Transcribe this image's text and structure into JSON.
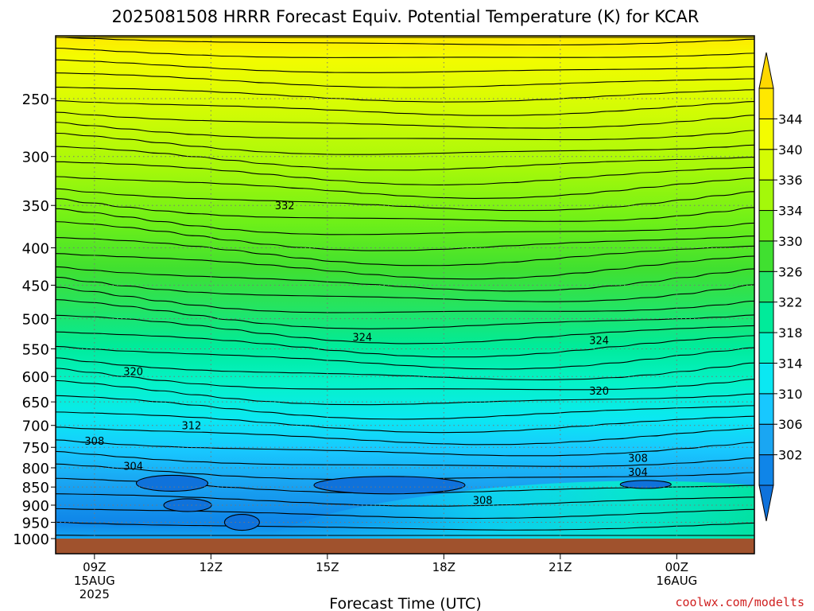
{
  "chart_data": {
    "type": "contour",
    "title": "2025081508 HRRR Forecast Equiv. Potential Temperature (K) for KCAR",
    "xlabel": "Forecast Time (UTC)",
    "ylabel": "",
    "credit": "coolwx.com/modelts",
    "x_ticks": [
      {
        "hour": 9,
        "lines": [
          "09Z",
          "15AUG",
          "2025"
        ]
      },
      {
        "hour": 12,
        "lines": [
          "12Z"
        ]
      },
      {
        "hour": 15,
        "lines": [
          "15Z"
        ]
      },
      {
        "hour": 18,
        "lines": [
          "18Z"
        ]
      },
      {
        "hour": 21,
        "lines": [
          "21Z"
        ]
      },
      {
        "hour": 24,
        "lines": [
          "00Z",
          "16AUG"
        ]
      }
    ],
    "xlim_hours": [
      8,
      26
    ],
    "y_axis": "pressure (hPa), log scale, inverted",
    "ylim": [
      1000,
      200
    ],
    "y_ticks": [
      250,
      300,
      350,
      400,
      450,
      500,
      550,
      600,
      650,
      700,
      750,
      800,
      850,
      900,
      950,
      1000
    ],
    "grid": true,
    "colorbar": {
      "labels": [
        302,
        306,
        310,
        314,
        318,
        322,
        326,
        330,
        334,
        336,
        340,
        344
      ],
      "levels": [
        298,
        302,
        306,
        310,
        314,
        318,
        322,
        326,
        330,
        334,
        336,
        340,
        344
      ],
      "colors": [
        "#0f85e8",
        "#1aa6f2",
        "#18c8ff",
        "#0be8f2",
        "#05f2c8",
        "#00eb9a",
        "#22e466",
        "#40e030",
        "#6ef018",
        "#a4f80a",
        "#d4fc04",
        "#f4fc00",
        "#ffe800"
      ]
    },
    "contour_labels": [
      {
        "value": 332,
        "hour": 13.9,
        "pressure": 350
      },
      {
        "value": 324,
        "hour": 15.9,
        "pressure": 530
      },
      {
        "value": 324,
        "hour": 22.0,
        "pressure": 535
      },
      {
        "value": 320,
        "hour": 10.0,
        "pressure": 590
      },
      {
        "value": 320,
        "hour": 22.0,
        "pressure": 627
      },
      {
        "value": 312,
        "hour": 11.5,
        "pressure": 700
      },
      {
        "value": 308,
        "hour": 9.0,
        "pressure": 735
      },
      {
        "value": 308,
        "hour": 23.0,
        "pressure": 775
      },
      {
        "value": 308,
        "hour": 19.0,
        "pressure": 885
      },
      {
        "value": 304,
        "hour": 10.0,
        "pressure": 795
      },
      {
        "value": 304,
        "hour": 23.0,
        "pressure": 810
      }
    ],
    "surface_color": "#a0522d"
  }
}
